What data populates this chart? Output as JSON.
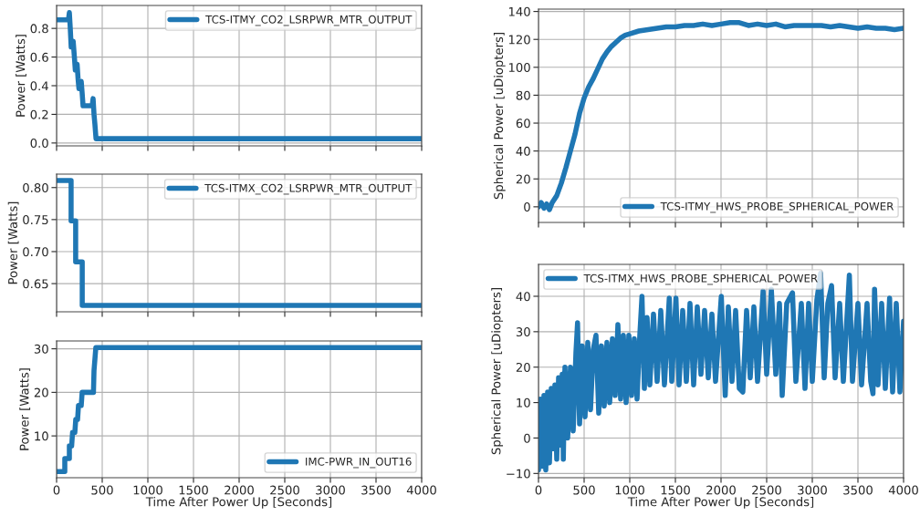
{
  "chart_data": [
    {
      "type": "line",
      "ylabel": "Power [Watts]",
      "xlim": [
        0,
        4000
      ],
      "xticks": [
        0,
        500,
        1000,
        1500,
        2000,
        2500,
        3000,
        3500,
        4000
      ],
      "ylim": [
        -0.02,
        0.96
      ],
      "yticks": [
        {
          "value": 0,
          "label": "0.0"
        },
        0.2,
        0.4,
        0.6,
        0.8
      ],
      "grid": true,
      "legend": "top right",
      "tick_labels": "y",
      "series": [
        {
          "name": "TCS-ITMY_CO2_LSRPWR_MTR_OUTPUT",
          "color": "#1f77b4",
          "x": [
            0,
            130,
            140,
            150,
            160,
            175,
            182,
            195,
            205,
            215,
            225,
            235,
            245,
            260,
            270,
            280,
            290,
            390,
            400,
            410,
            420,
            432,
            4000
          ],
          "values": [
            0.86,
            0.86,
            0.91,
            0.8,
            0.67,
            0.67,
            0.71,
            0.6,
            0.51,
            0.51,
            0.55,
            0.45,
            0.38,
            0.38,
            0.43,
            0.35,
            0.26,
            0.26,
            0.31,
            0.2,
            0.13,
            0.03,
            0.03
          ]
        }
      ]
    },
    {
      "type": "line",
      "ylabel": "Power [Watts]",
      "xlim": [
        0,
        4000
      ],
      "xticks": [
        0,
        500,
        1000,
        1500,
        2000,
        2500,
        3000,
        3500,
        4000
      ],
      "ylim": [
        0.606,
        0.821
      ],
      "yticks": [
        {
          "value": 0.65,
          "label": "0.65"
        },
        {
          "value": 0.7,
          "label": "0.70"
        },
        {
          "value": 0.75,
          "label": "0.75"
        },
        {
          "value": 0.8,
          "label": "0.80"
        }
      ],
      "grid": true,
      "legend": "top right",
      "tick_labels": "y",
      "series": [
        {
          "name": "TCS-ITMX_CO2_LSRPWR_MTR_OUTPUT",
          "color": "#1f77b4",
          "x": [
            0,
            159,
            159,
            209,
            209,
            281,
            281,
            4000
          ],
          "values": [
            0.811,
            0.811,
            0.748,
            0.748,
            0.684,
            0.684,
            0.616,
            0.616
          ]
        }
      ]
    },
    {
      "type": "line",
      "ylabel": "Power [Watts]",
      "xlabel": "Time After Power Up [Seconds]",
      "xlim": [
        0,
        4000
      ],
      "xticks": [
        0,
        500,
        1000,
        1500,
        2000,
        2500,
        3000,
        3500,
        4000
      ],
      "ylim": [
        0.4,
        31.8
      ],
      "yticks": [
        10,
        20,
        30
      ],
      "grid": true,
      "legend": "bottom right",
      "series": [
        {
          "name": "IMC-PWR_IN_OUT16",
          "color": "#1f77b4",
          "x": [
            0,
            90,
            90,
            140,
            140,
            165,
            175,
            200,
            210,
            230,
            240,
            270,
            280,
            404,
            410,
            430,
            4000
          ],
          "values": [
            1.8,
            1.8,
            4.8,
            4.8,
            7.7,
            7.7,
            10.8,
            10.8,
            13.8,
            13.8,
            17,
            17,
            20,
            20,
            25,
            30.3,
            30.3
          ]
        }
      ]
    },
    {
      "type": "line",
      "ylabel": "Spherical Power [uDiopters]",
      "xlim": [
        0,
        4000
      ],
      "xticks": [
        0,
        500,
        1000,
        1500,
        2000,
        2500,
        3000,
        3500,
        4000
      ],
      "ylim": [
        -11.2,
        141.7
      ],
      "yticks": [
        0,
        20,
        40,
        60,
        80,
        100,
        120,
        140
      ],
      "grid": true,
      "legend": "bottom right",
      "tick_labels": "y",
      "series": [
        {
          "name": "TCS-ITMY_HWS_PROBE_SPHERICAL_POWER",
          "color": "#1f77b4",
          "x": [
            0,
            30,
            60,
            90,
            120,
            150,
            200,
            250,
            300,
            350,
            400,
            450,
            500,
            550,
            600,
            650,
            700,
            750,
            800,
            850,
            900,
            950,
            1000,
            1100,
            1200,
            1300,
            1400,
            1500,
            1600,
            1700,
            1800,
            1900,
            2000,
            2100,
            2200,
            2300,
            2400,
            2500,
            2600,
            2700,
            2800,
            2900,
            3000,
            3100,
            3200,
            3300,
            3400,
            3500,
            3600,
            3700,
            3800,
            3900,
            4000
          ],
          "values": [
            0,
            3,
            -1,
            2,
            -2,
            3,
            8,
            17,
            28,
            40,
            52,
            67,
            78,
            86,
            92,
            99,
            106,
            111,
            115,
            118,
            121,
            123,
            124,
            126,
            127,
            128,
            129,
            129,
            130,
            130,
            131,
            130,
            131,
            132,
            132,
            130,
            131,
            130,
            131,
            129,
            130,
            130,
            130,
            130,
            129,
            130,
            129,
            128,
            129,
            128,
            128,
            127,
            128
          ]
        }
      ]
    },
    {
      "type": "line",
      "ylabel": "Spherical Power [uDiopters]",
      "xlabel": "Time After Power Up [Seconds]",
      "xlim": [
        0,
        4000
      ],
      "xticks": [
        0,
        500,
        1000,
        1500,
        2000,
        2500,
        3000,
        3500,
        4000
      ],
      "ylim": [
        -11.2,
        49
      ],
      "yticks": [
        {
          "value": -10,
          "label": "−10"
        },
        0,
        10,
        20,
        30,
        40
      ],
      "grid": true,
      "legend": "top left",
      "series": [
        {
          "name": "TCS-ITMX_HWS_PROBE_SPHERICAL_POWER",
          "color": "#1f77b4",
          "x": [
            0,
            20,
            40,
            60,
            80,
            100,
            120,
            140,
            160,
            180,
            200,
            220,
            240,
            260,
            272,
            290,
            320,
            350,
            380,
            410,
            428,
            450,
            480,
            510,
            540,
            570,
            600,
            630,
            660,
            690,
            720,
            750,
            780,
            810,
            840,
            870,
            900,
            930,
            960,
            990,
            1020,
            1050,
            1080,
            1110,
            1134,
            1160,
            1190,
            1220,
            1260,
            1300,
            1340,
            1380,
            1433,
            1460,
            1506,
            1540,
            1580,
            1620,
            1660,
            1700,
            1740,
            1780,
            1820,
            1860,
            1900,
            1940,
            2003,
            2046,
            2080,
            2120,
            2160,
            2200,
            2239,
            2280,
            2320,
            2360,
            2400,
            2461,
            2500,
            2551,
            2600,
            2640,
            2670,
            2720,
            2783,
            2820,
            2880,
            2920,
            2960,
            3000,
            3050,
            3091,
            3130,
            3170,
            3211,
            3250,
            3300,
            3340,
            3406,
            3440,
            3500,
            3540,
            3600,
            3640,
            3665,
            3682,
            3720,
            3760,
            3800,
            3847,
            3880,
            3920,
            3960,
            4000
          ],
          "values": [
            -9,
            11,
            -8,
            12,
            -9,
            13,
            -7,
            14,
            -3,
            15,
            -6,
            17,
            -2,
            18,
            -6,
            20,
            0,
            20,
            2,
            24,
            32.5,
            4,
            26,
            6,
            27,
            8,
            25,
            29,
            7,
            26,
            9,
            27,
            10,
            28,
            12,
            32,
            11,
            29,
            10,
            29,
            12,
            28,
            11,
            29,
            40,
            14,
            34,
            15,
            35,
            16,
            36,
            15,
            39.5,
            16,
            39.5,
            15,
            36,
            16,
            38,
            15,
            37,
            18,
            36,
            17,
            35,
            16,
            40,
            12,
            37,
            16,
            36,
            14,
            13,
            36,
            17,
            37,
            16,
            41.5,
            18,
            42,
            18,
            38,
            12,
            38,
            41,
            16,
            38,
            14,
            38,
            16,
            39,
            46.5,
            17,
            38,
            43,
            17,
            38,
            16,
            46,
            16,
            38,
            15,
            38,
            16,
            12.5,
            42,
            15,
            38,
            14,
            39.5,
            13,
            38,
            13,
            33
          ]
        }
      ]
    }
  ]
}
